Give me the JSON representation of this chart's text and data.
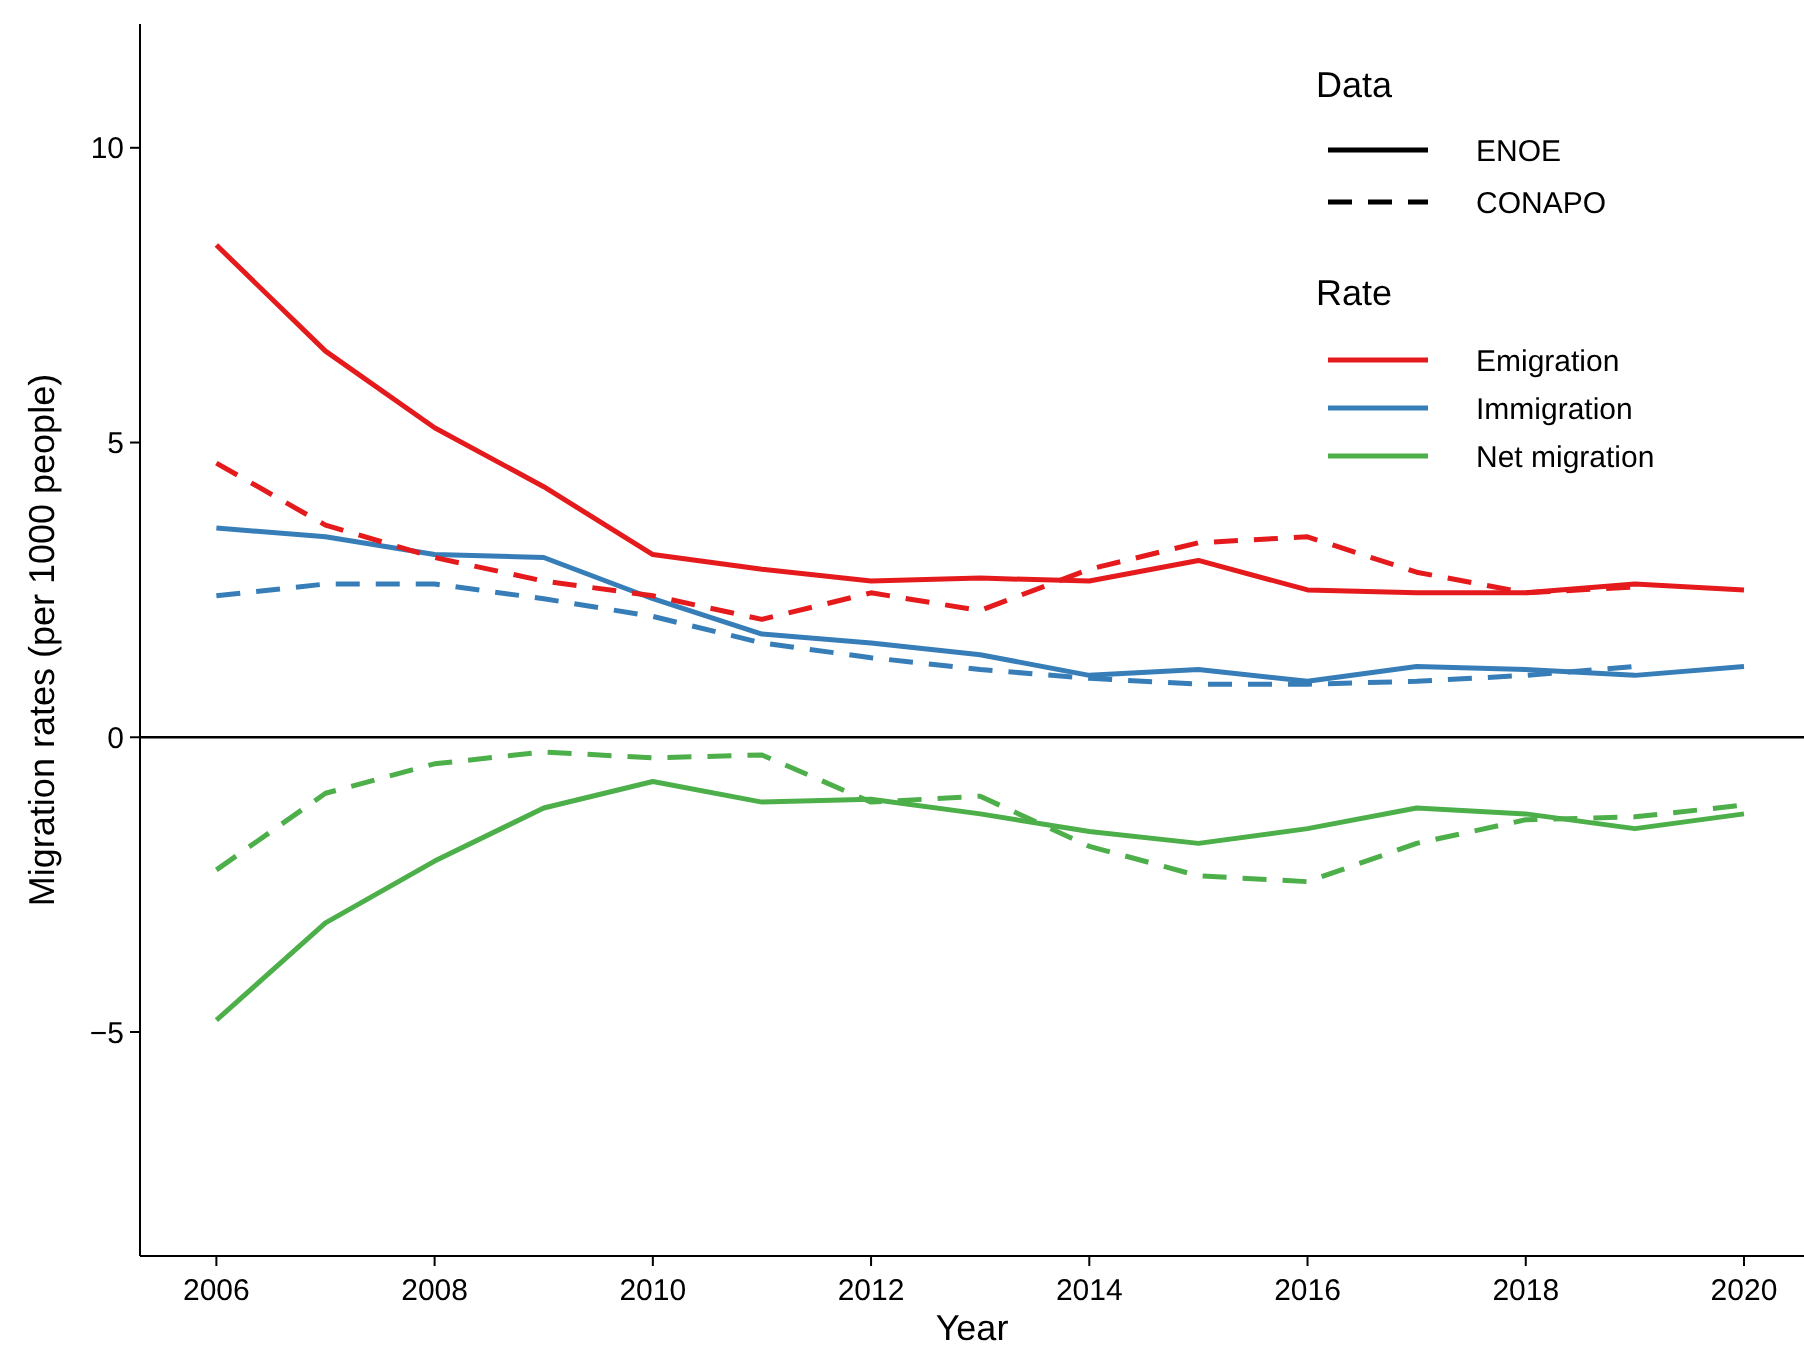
{
  "chart_data": {
    "type": "line",
    "xlabel": "Year",
    "ylabel": "Migration rates (per 1000 people)",
    "legend_title": [
      "Data",
      "Rate"
    ],
    "legend": "top right",
    "annotations": [
      "ENOE",
      "CONAPO"
    ],
    "x": [
      2006,
      2007,
      2008,
      2009,
      2010,
      2011,
      2012,
      2013,
      2014,
      2015,
      2016,
      2017,
      2018,
      2019,
      2020
    ],
    "xlim": [
      2005.3,
      2020.55
    ],
    "xticks": [
      2006,
      2008,
      2010,
      2012,
      2014,
      2016,
      2018,
      2020
    ],
    "ylim": [
      -8.8,
      12.1
    ],
    "yticks": [
      {
        "value": -5,
        "label": "−5"
      },
      0,
      5,
      10
    ],
    "ref_lines": [
      {
        "axis": "y",
        "value": 0,
        "color": "#000000"
      }
    ],
    "series": [
      {
        "name": "Emigration",
        "color": "#e41a1c",
        "line_style": "solid",
        "values": [
          8.35,
          6.55,
          5.25,
          4.25,
          3.1,
          2.85,
          2.65,
          2.7,
          2.65,
          3.0,
          2.5,
          2.45,
          2.45,
          2.6,
          2.5
        ]
      },
      {
        "name": "Immigration",
        "color": "#377eb8",
        "line_style": "solid",
        "values": [
          3.55,
          3.4,
          3.1,
          3.05,
          2.35,
          1.75,
          1.6,
          1.4,
          1.05,
          1.15,
          0.95,
          1.2,
          1.15,
          1.05,
          1.2
        ]
      },
      {
        "name": "Net migration",
        "color": "#4daf4a",
        "line_style": "solid",
        "values": [
          -4.8,
          -3.15,
          -2.1,
          -1.2,
          -0.75,
          -1.1,
          -1.05,
          -1.3,
          -1.6,
          -1.8,
          -1.55,
          -1.2,
          -1.3,
          -1.55,
          -1.3
        ]
      },
      {
        "color": "#e41a1c",
        "line_style": "dashed",
        "values": [
          4.65,
          3.6,
          3.05,
          2.65,
          2.4,
          2.0,
          2.45,
          2.15,
          2.85,
          3.3,
          3.4,
          2.8,
          2.45,
          2.55,
          null
        ]
      },
      {
        "color": "#377eb8",
        "line_style": "dashed",
        "values": [
          2.4,
          2.6,
          2.6,
          2.35,
          2.05,
          1.6,
          1.35,
          1.15,
          1.0,
          0.9,
          0.9,
          0.95,
          1.05,
          1.2,
          null
        ]
      },
      {
        "color": "#4daf4a",
        "line_style": "dashed",
        "values": [
          -2.25,
          -0.95,
          -0.45,
          -0.25,
          -0.35,
          -0.3,
          -1.1,
          -1.0,
          -1.85,
          -2.35,
          -2.45,
          -1.8,
          -1.4,
          -1.35,
          -1.15
        ]
      }
    ]
  }
}
